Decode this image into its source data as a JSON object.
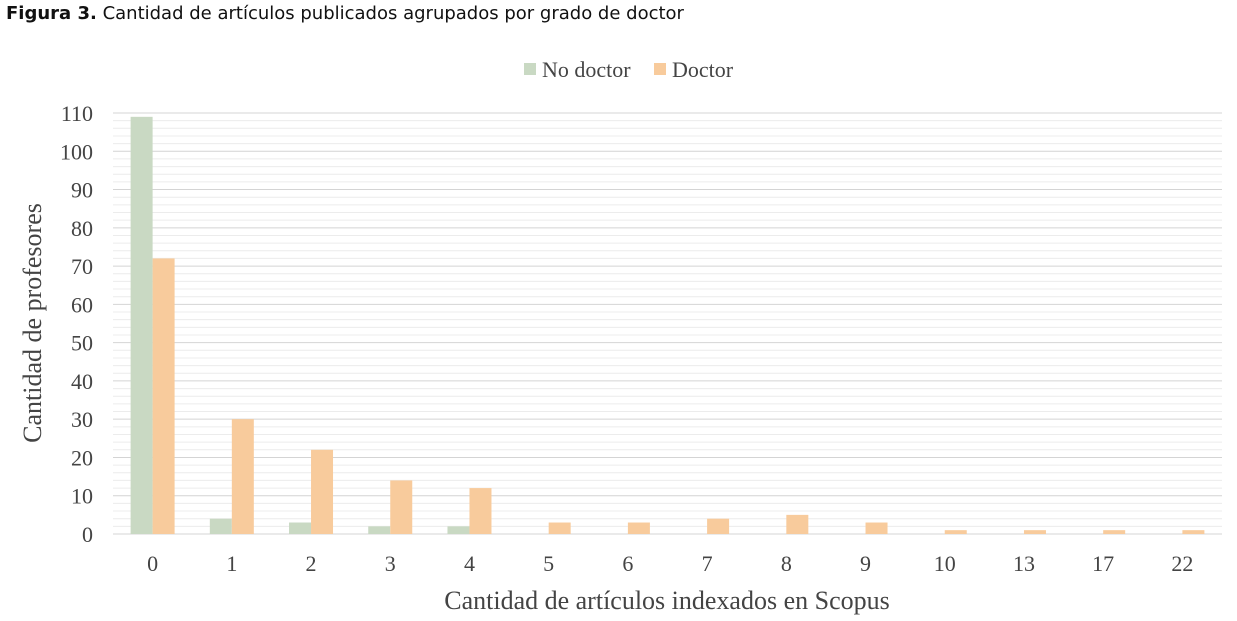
{
  "figure": {
    "label": "Figura 3.",
    "caption": "Cantidad de artículos publicados agrupados por grado de doctor"
  },
  "chart_data": {
    "type": "bar",
    "title": "",
    "xlabel": "Cantidad de artículos indexados en Scopus",
    "ylabel": "Cantidad de profesores",
    "categories": [
      "0",
      "1",
      "2",
      "3",
      "4",
      "5",
      "6",
      "7",
      "8",
      "9",
      "10",
      "13",
      "17",
      "22"
    ],
    "series": [
      {
        "name": "No doctor",
        "color": "#c9d9c3",
        "values": [
          109,
          4,
          3,
          2,
          2,
          0,
          0,
          0,
          0,
          0,
          0,
          0,
          0,
          0
        ]
      },
      {
        "name": "Doctor",
        "color": "#f8cb9c",
        "values": [
          72,
          30,
          22,
          14,
          12,
          3,
          3,
          4,
          5,
          3,
          1,
          1,
          1,
          1
        ]
      }
    ],
    "ylim": [
      0,
      110
    ],
    "yticks": [
      0,
      10,
      20,
      30,
      40,
      50,
      60,
      70,
      80,
      90,
      100,
      110
    ],
    "grid": true,
    "legend_position": "top-center"
  }
}
